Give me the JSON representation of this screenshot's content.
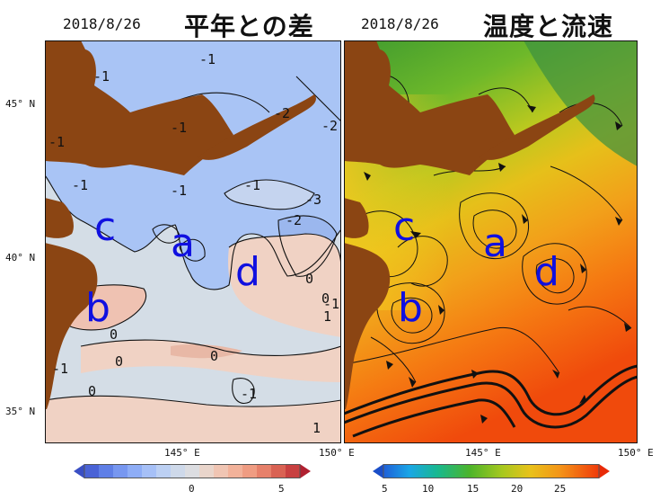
{
  "left_panel": {
    "date": "2018/8/26",
    "title": "平年との差",
    "region_labels": [
      "c",
      "a",
      "d",
      "b"
    ],
    "contour_labels": [
      "-1",
      "-1",
      "-1",
      "-2",
      "-2",
      "-1",
      "-1",
      "-1",
      "-3",
      "-2",
      "-1",
      "0",
      "0",
      "0",
      "0",
      "0",
      "-1",
      "-1",
      "1",
      "0",
      "-1",
      "1"
    ],
    "colorbar_ticks": [
      "0",
      "5"
    ]
  },
  "right_panel": {
    "date": "2018/8/26",
    "title": "温度と流速",
    "region_labels": [
      "c",
      "a",
      "d",
      "b"
    ],
    "colorbar_ticks": [
      "5",
      "10",
      "15",
      "20",
      "25"
    ]
  },
  "axes": {
    "lat_labels": [
      "45° N",
      "40° N",
      "35° N"
    ],
    "left_lon_labels": [
      "145° E",
      "150° E"
    ],
    "right_lon_labels": [
      "145° E",
      "150° E"
    ]
  },
  "colors": {
    "land": "#8b4513",
    "anomaly_neutral": "#d4dde6",
    "anomaly_cool": "#a9c4f5",
    "anomaly_warm": "#f0d2c4",
    "label_blue": "#1010e0"
  }
}
